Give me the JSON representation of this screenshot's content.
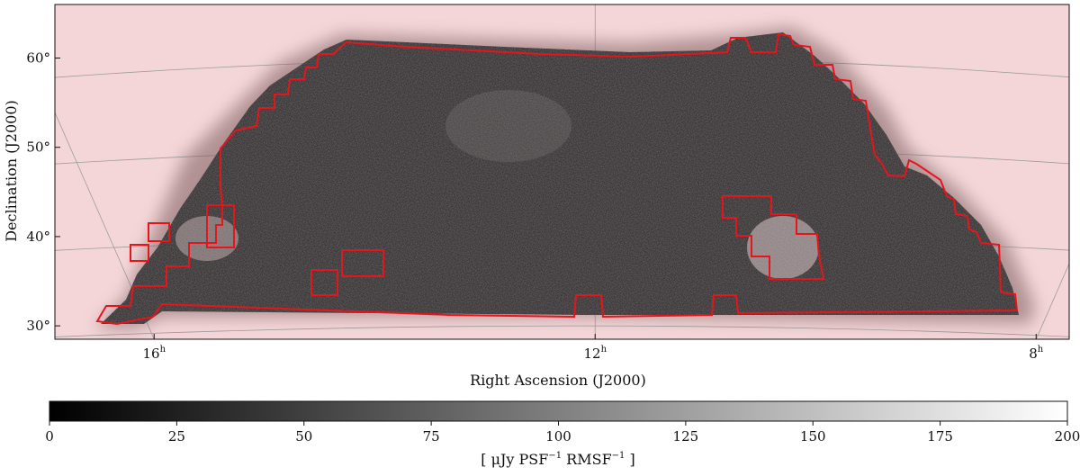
{
  "chart_data": {
    "type": "heatmap",
    "title": "",
    "xlabel": "Right Ascension (J2000)",
    "ylabel": "Declination (J2000)",
    "x_ticks": [
      {
        "hours": 16,
        "label": "16",
        "unit": "h"
      },
      {
        "hours": 12,
        "label": "12",
        "unit": "h"
      },
      {
        "hours": 8,
        "label": "8",
        "unit": "h"
      }
    ],
    "y_ticks": [
      {
        "deg": 30,
        "label": "30°"
      },
      {
        "deg": 40,
        "label": "40°"
      },
      {
        "deg": 50,
        "label": "50°"
      },
      {
        "deg": 60,
        "label": "60°"
      }
    ],
    "ra_range_hours": [
      16.9,
      7.7
    ],
    "dec_range_deg": [
      28.5,
      66
    ],
    "grid": true,
    "background_color": "#f4d6d8",
    "map_dark_color": "#2e2e2e",
    "contour_color": "#e8141c",
    "colorbar": {
      "min": 0,
      "max": 200,
      "ticks": [
        0,
        25,
        50,
        75,
        100,
        125,
        150,
        175,
        200
      ],
      "label_prefix": "[ μJy PSF",
      "label_exp1": "−1",
      "label_mid": " RMSF",
      "label_exp2": "−1",
      "label_suffix": " ]"
    }
  }
}
